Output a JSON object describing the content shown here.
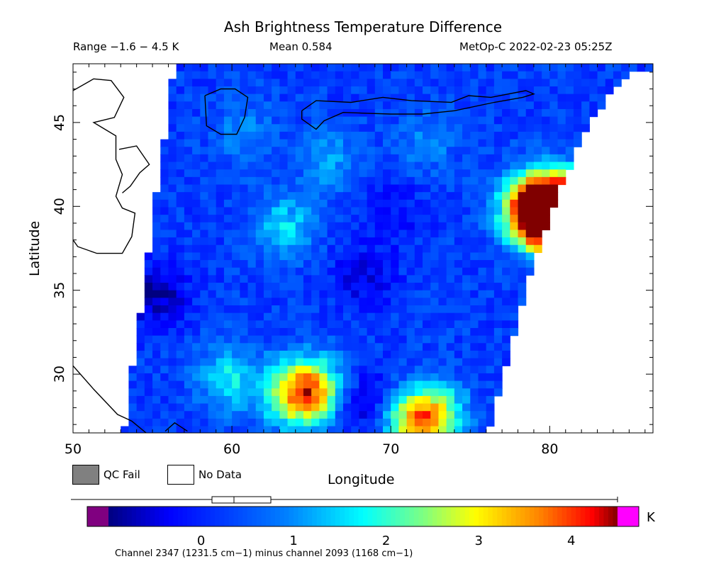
{
  "header": {
    "title": "Ash Brightness Temperature Difference",
    "range_text": "Range −1.6 − 4.5 K",
    "mean_text": "Mean 0.584",
    "satellite_text": "MetOp-C 2022-02-23 05:25Z"
  },
  "legend": {
    "qc_fail_label": "QC Fail",
    "no_data_label": "No Data",
    "qc_fail_color": "#808080",
    "no_data_color": "#ffffff"
  },
  "colorbar": {
    "unit": "K",
    "ticks": [
      "0",
      "1",
      "2",
      "3",
      "4"
    ],
    "tick_values": [
      0,
      1,
      2,
      3,
      4
    ],
    "range": [
      -1.6,
      4.5
    ],
    "underflow_color": "#800080",
    "overflow_color": "#ff00ff",
    "footnote": "Channel 2347 (1231.5 cm−1) minus channel 2093 (1168 cm−1)"
  },
  "chart_data": {
    "type": "heatmap",
    "title": "Ash Brightness Temperature Difference",
    "xlabel": "Longitude",
    "ylabel": "Latitude",
    "xlim": [
      50,
      86.5
    ],
    "ylim": [
      26.5,
      48.5
    ],
    "x_ticks": [
      "50",
      "60",
      "70",
      "80"
    ],
    "x_tick_values": [
      50,
      60,
      70,
      80
    ],
    "y_ticks": [
      "30",
      "35",
      "40",
      "45"
    ],
    "y_tick_values": [
      30,
      35,
      40,
      45
    ],
    "swath_left_edge": [
      [
        56.3,
        48.5
      ],
      [
        53.1,
        26.5
      ]
    ],
    "features": [
      {
        "lon": 80.5,
        "lat": 39.7,
        "value": 4.3
      },
      {
        "lon": 81.2,
        "lat": 40.1,
        "value": 4.5
      },
      {
        "lon": 79.0,
        "lat": 39.5,
        "value": 3.9
      },
      {
        "lon": 78.5,
        "lat": 40.6,
        "value": 2.5
      },
      {
        "lon": 65.0,
        "lat": 29.3,
        "value": 3.0
      },
      {
        "lon": 63.5,
        "lat": 29.0,
        "value": 2.6
      },
      {
        "lon": 72.5,
        "lat": 27.8,
        "value": 2.8
      },
      {
        "lon": 71.0,
        "lat": 27.1,
        "value": 2.7
      },
      {
        "lon": 59.5,
        "lat": 30.0,
        "value": 1.8
      },
      {
        "lon": 63.0,
        "lat": 39.0,
        "value": 1.7
      },
      {
        "lon": 66.0,
        "lat": 43.0,
        "value": 1.2
      },
      {
        "lon": 60.5,
        "lat": 44.6,
        "value": 1.0
      },
      {
        "lon": 72.0,
        "lat": 44.0,
        "value": 1.0
      },
      {
        "lon": 55.0,
        "lat": 35.0,
        "value": -0.9
      },
      {
        "lon": 68.0,
        "lat": 36.0,
        "value": -0.5
      },
      {
        "lon": 68.0,
        "lat": 28.5,
        "value": -0.8
      },
      {
        "lon": 70.0,
        "lat": 40.0,
        "value": -0.3
      }
    ],
    "background_value": 0.25
  }
}
